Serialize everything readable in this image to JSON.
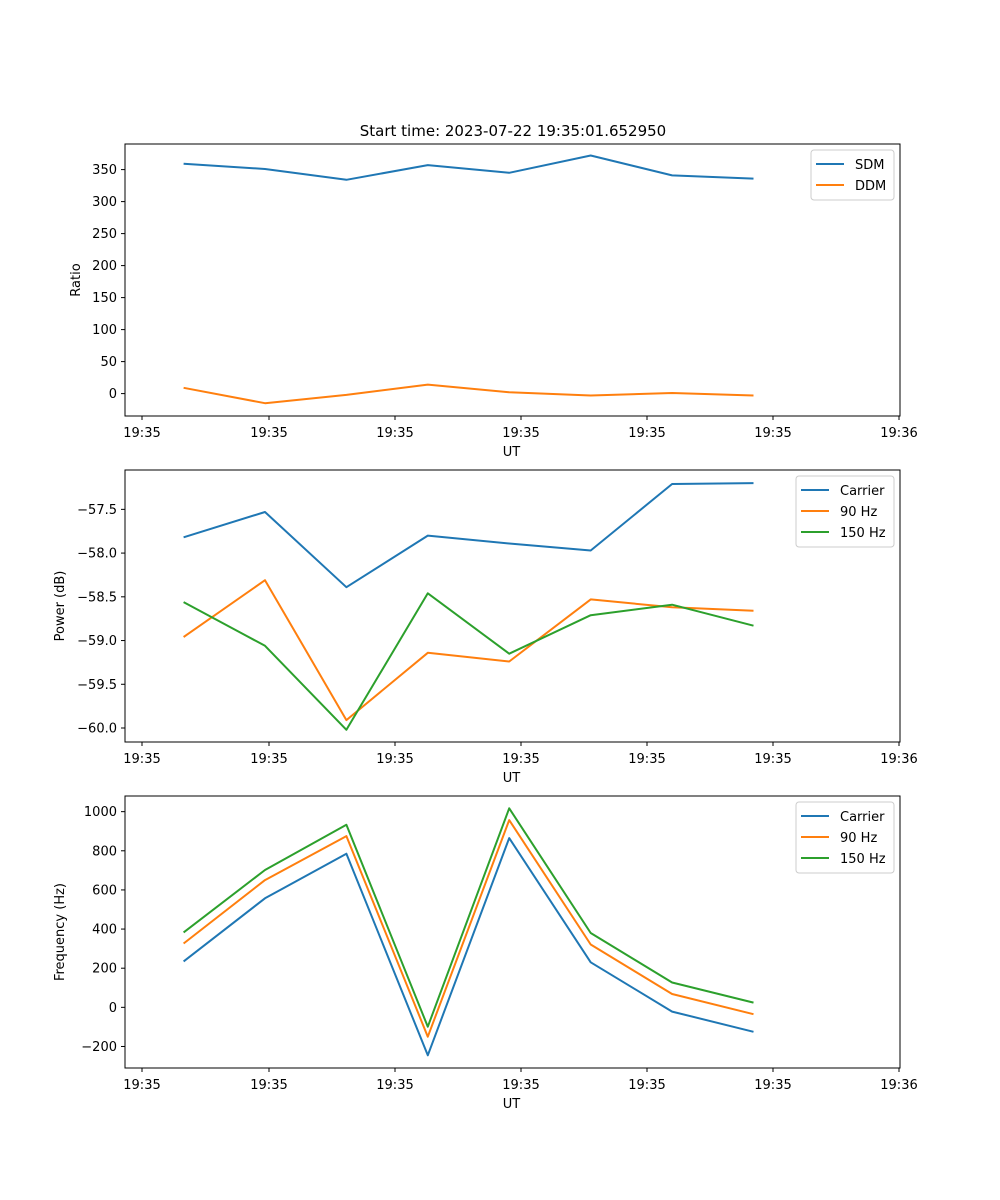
{
  "figure_title": "Start time: 2023-07-22 19:35:01.652950",
  "chart_data": [
    {
      "type": "line",
      "title": "Start time: 2023-07-22 19:35:01.652950",
      "xlabel": "UT",
      "ylabel": "Ratio",
      "x_ticks": [
        "19:35",
        "19:35",
        "19:35",
        "19:35",
        "19:35",
        "19:35",
        "19:36"
      ],
      "x": [
        1,
        2,
        3,
        4,
        5,
        6,
        7,
        8
      ],
      "xlim": [
        0.28,
        9.8
      ],
      "ylim": [
        -35,
        390
      ],
      "y_ticks": [
        0,
        50,
        100,
        150,
        200,
        250,
        300,
        350
      ],
      "legend_position": "top-right",
      "series": [
        {
          "name": "SDM",
          "color": "#1f77b4",
          "values": [
            359,
            351,
            334,
            357,
            345,
            372,
            341,
            336
          ]
        },
        {
          "name": "DDM",
          "color": "#ff7f0e",
          "values": [
            9,
            -15,
            -2,
            14,
            2,
            -3,
            1,
            -3
          ]
        }
      ]
    },
    {
      "type": "line",
      "title": "",
      "xlabel": "UT",
      "ylabel": "Power (dB)",
      "x_ticks": [
        "19:35",
        "19:35",
        "19:35",
        "19:35",
        "19:35",
        "19:35",
        "19:36"
      ],
      "x": [
        1,
        2,
        3,
        4,
        5,
        6,
        7,
        8
      ],
      "xlim": [
        0.28,
        9.8
      ],
      "ylim": [
        -60.16,
        -57.05
      ],
      "y_ticks": [
        -60.0,
        -59.5,
        -59.0,
        -58.5,
        -58.0,
        -57.5
      ],
      "y_tick_labels": [
        "−60.0",
        "−59.5",
        "−59.0",
        "−58.5",
        "−58.0",
        "−57.5"
      ],
      "legend_position": "top-right",
      "series": [
        {
          "name": "Carrier",
          "color": "#1f77b4",
          "values": [
            -57.82,
            -57.53,
            -58.39,
            -57.8,
            -57.89,
            -57.97,
            -57.21,
            -57.2
          ]
        },
        {
          "name": "90 Hz",
          "color": "#ff7f0e",
          "values": [
            -58.96,
            -58.31,
            -59.91,
            -59.14,
            -59.24,
            -58.53,
            -58.62,
            -58.66
          ]
        },
        {
          "name": "150 Hz",
          "color": "#2ca02c",
          "values": [
            -58.56,
            -59.06,
            -60.02,
            -58.46,
            -59.15,
            -58.71,
            -58.59,
            -58.83
          ]
        }
      ]
    },
    {
      "type": "line",
      "title": "",
      "xlabel": "UT",
      "ylabel": "Frequency (Hz)",
      "x_ticks": [
        "19:35",
        "19:35",
        "19:35",
        "19:35",
        "19:35",
        "19:35",
        "19:36"
      ],
      "x": [
        1,
        2,
        3,
        4,
        5,
        6,
        7,
        8
      ],
      "xlim": [
        0.28,
        9.8
      ],
      "ylim": [
        -310,
        1080
      ],
      "y_ticks": [
        -200,
        0,
        200,
        400,
        600,
        800,
        1000
      ],
      "y_tick_labels": [
        "−200",
        "0",
        "200",
        "400",
        "600",
        "800",
        "1000"
      ],
      "legend_position": "top-right",
      "series": [
        {
          "name": "Carrier",
          "color": "#1f77b4",
          "values": [
            235,
            557,
            785,
            -245,
            865,
            230,
            -22,
            -125
          ]
        },
        {
          "name": "90 Hz",
          "color": "#ff7f0e",
          "values": [
            326,
            650,
            875,
            -150,
            957,
            321,
            68,
            -35
          ]
        },
        {
          "name": "150 Hz",
          "color": "#2ca02c",
          "values": [
            383,
            702,
            933,
            -99,
            1017,
            380,
            127,
            24
          ]
        }
      ]
    }
  ]
}
